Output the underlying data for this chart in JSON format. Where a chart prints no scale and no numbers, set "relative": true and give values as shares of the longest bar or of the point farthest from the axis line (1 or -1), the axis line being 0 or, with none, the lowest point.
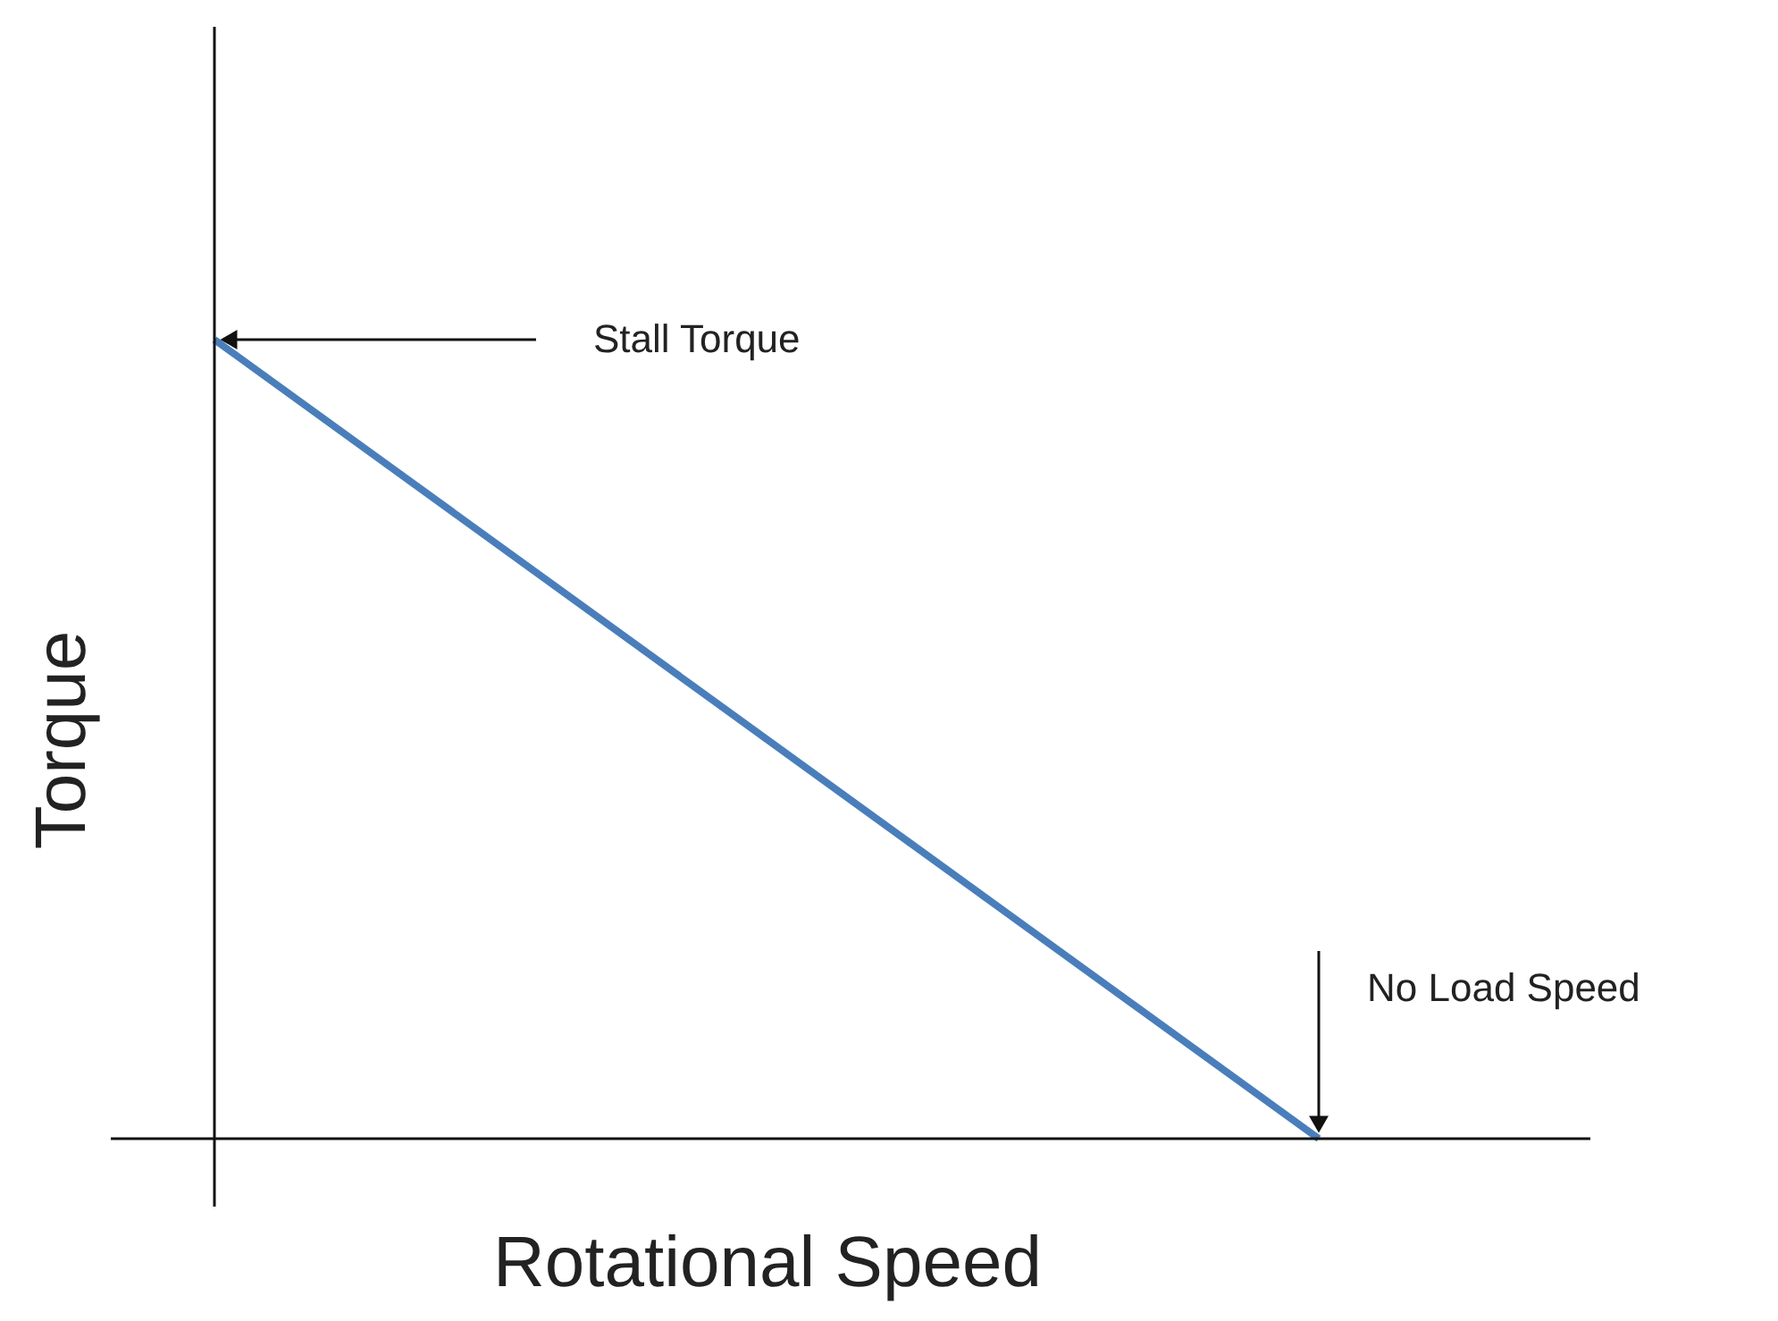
{
  "chart_data": {
    "type": "line",
    "relative": true,
    "xlabel": "Rotational Speed",
    "ylabel": "Torque",
    "categories": [
      null,
      null
    ],
    "series": [
      {
        "color": "#4a7ebb",
        "values": [
          1,
          0
        ]
      }
    ],
    "annotations": [
      "Stall Torque",
      "No Load Speed"
    ],
    "grid": false,
    "line_style": "solid",
    "tick_labels": false
  }
}
